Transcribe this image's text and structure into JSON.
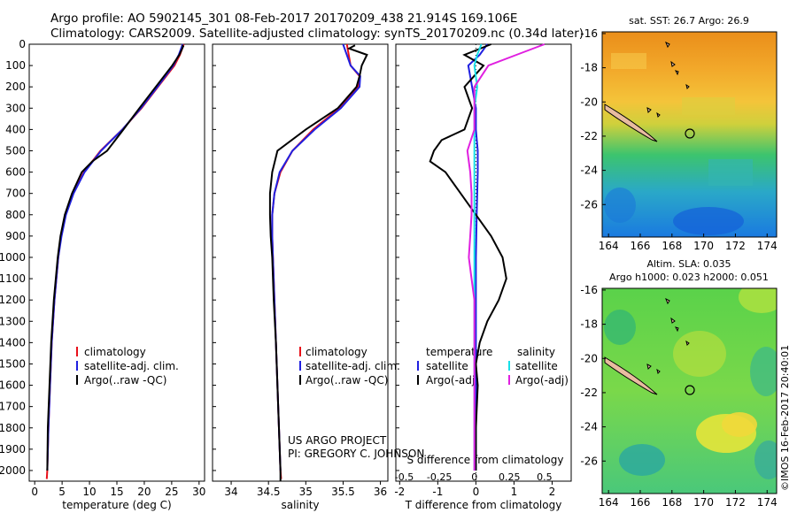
{
  "header": {
    "line1": "Argo profile: AO 5902145_301 08-Feb-2017 20170209_438 21.914S 169.106E",
    "line2": "Climatology: CARS2009. Satellite-adjusted climatology: synTS_20170209.nc (0.34d later)"
  },
  "footer": {
    "project": "US ARGO PROJECT",
    "pi": "PI: GREGORY C. JOHNSON"
  },
  "side_label": "©IMOS 16-Feb-2017 20:40:01",
  "colors": {
    "climatology": "#e8101a",
    "satellite": "#2020e0",
    "argo": "#000000",
    "sat_sal": "#18e0e8",
    "argo_sal": "#e020e0"
  },
  "map_titles": {
    "sst": "sat. SST: 26.7 Argo: 26.9",
    "sla1": "Altim. SLA: 0.035",
    "sla2": "Argo h1000: 0.023 h2000: 0.051"
  },
  "legends": {
    "temp": [
      "climatology",
      "satellite-adj. clim.",
      "Argo(..raw -QC)"
    ],
    "sal": [
      "climatology",
      "satellite-adj. clim.",
      "Argo(..raw -QC)"
    ],
    "diff": {
      "temp_head": "temperature",
      "sal_head": "salinity",
      "items": [
        "satellite",
        "Argo(-adj)",
        "satellite",
        "Argo(-adj)"
      ]
    }
  },
  "chart_data": [
    {
      "type": "line",
      "xlabel": "temperature (deg C)",
      "ylabel": "",
      "xlim": [
        -1,
        31
      ],
      "ylim": [
        2050,
        0
      ],
      "xticks": [
        "0",
        "5",
        "10",
        "15",
        "20",
        "25",
        "30"
      ],
      "yticks": [
        "0",
        "100",
        "200",
        "300",
        "400",
        "500",
        "600",
        "700",
        "800",
        "900",
        "1000",
        "1100",
        "1200",
        "1300",
        "1400",
        "1500",
        "1600",
        "1700",
        "1800",
        "1900",
        "2000"
      ],
      "series": [
        {
          "name": "climatology",
          "depth": [
            0,
            50,
            100,
            200,
            300,
            400,
            500,
            600,
            700,
            800,
            900,
            1000,
            1200,
            1400,
            1600,
            1800,
            2000,
            2040
          ],
          "values": [
            27.2,
            26.5,
            25.5,
            22.5,
            19.5,
            16.0,
            12.0,
            9.0,
            7.0,
            5.6,
            4.8,
            4.3,
            3.6,
            3.1,
            2.8,
            2.5,
            2.3,
            2.2
          ]
        },
        {
          "name": "satellite-adj. clim.",
          "depth": [
            0,
            50,
            100,
            200,
            300,
            400,
            500,
            600,
            700,
            800,
            900,
            1000,
            1200,
            1400,
            1600,
            1800,
            2000
          ],
          "values": [
            27.0,
            26.3,
            25.3,
            22.4,
            19.4,
            16.0,
            12.1,
            9.1,
            7.1,
            5.7,
            4.9,
            4.3,
            3.6,
            3.1,
            2.8,
            2.5,
            2.3
          ]
        },
        {
          "name": "Argo(..raw -QC)",
          "depth": [
            5,
            10,
            50,
            100,
            200,
            300,
            400,
            500,
            550,
            600,
            700,
            800,
            900,
            1000,
            1200,
            1400,
            1600,
            1800,
            2000
          ],
          "values": [
            26.9,
            27.1,
            26.4,
            25.1,
            22.1,
            19.1,
            16.2,
            13.2,
            10.5,
            8.6,
            6.8,
            5.5,
            4.7,
            4.2,
            3.5,
            3.0,
            2.7,
            2.4,
            2.3
          ]
        }
      ]
    },
    {
      "type": "line",
      "xlabel": "salinity",
      "ylabel": "",
      "xlim": [
        33.75,
        36.1
      ],
      "ylim": [
        2050,
        0
      ],
      "xticks": [
        "34",
        "34.5",
        "35",
        "35.5",
        "36"
      ],
      "series": [
        {
          "name": "climatology",
          "depth": [
            0,
            100,
            150,
            200,
            300,
            400,
            500,
            600,
            700,
            800,
            900,
            1000,
            1200,
            1400,
            1600,
            1800,
            2000,
            2040
          ],
          "values": [
            35.55,
            35.6,
            35.72,
            35.7,
            35.45,
            35.1,
            34.82,
            34.66,
            34.58,
            34.55,
            34.55,
            34.56,
            34.58,
            34.6,
            34.62,
            34.64,
            34.66,
            34.67
          ]
        },
        {
          "name": "satellite-adj. clim.",
          "depth": [
            0,
            100,
            150,
            200,
            300,
            400,
            500,
            600,
            700,
            800,
            900,
            1000,
            1200,
            1400,
            1600,
            1800,
            2000
          ],
          "values": [
            35.5,
            35.6,
            35.73,
            35.72,
            35.47,
            35.12,
            34.82,
            34.65,
            34.58,
            34.55,
            34.55,
            34.56,
            34.58,
            34.6,
            34.62,
            34.64,
            34.66
          ]
        },
        {
          "name": "Argo(..raw -QC)",
          "depth": [
            5,
            20,
            50,
            100,
            150,
            200,
            300,
            400,
            500,
            600,
            700,
            800,
            900,
            1000,
            1200,
            1400,
            1600,
            1800,
            2000,
            2050
          ],
          "values": [
            35.66,
            35.58,
            35.82,
            35.75,
            35.72,
            35.68,
            35.43,
            35.0,
            34.62,
            34.55,
            34.52,
            34.52,
            34.53,
            34.55,
            34.57,
            34.6,
            34.62,
            34.64,
            34.66,
            34.66
          ]
        }
      ]
    },
    {
      "type": "line",
      "xlabel": "T difference from climatology",
      "x2label": "S difference from climatology",
      "xlim": [
        -2.1,
        2.5
      ],
      "ylim": [
        2050,
        0
      ],
      "xticks": [
        "-2",
        "-1",
        "0",
        "1",
        "2"
      ],
      "x2ticks": [
        "-0.5",
        "-0.25",
        "0",
        "0.25",
        "0.5"
      ],
      "series": [
        {
          "name": "temperature satellite",
          "depth": [
            0,
            50,
            100,
            200,
            300,
            400,
            500,
            600,
            800,
            1000,
            1500,
            2000
          ],
          "values": [
            0.3,
            0.1,
            -0.2,
            -0.1,
            0.0,
            0.0,
            0.05,
            0.05,
            0.02,
            0.0,
            0.0,
            0.0
          ]
        },
        {
          "name": "temperature Argo(-adj)",
          "depth": [
            0,
            50,
            100,
            200,
            300,
            400,
            450,
            500,
            550,
            600,
            700,
            800,
            900,
            1000,
            1100,
            1200,
            1300,
            1400,
            1500,
            1600,
            1800,
            2000
          ],
          "values": [
            0.4,
            -0.3,
            0.2,
            -0.3,
            -0.1,
            -0.3,
            -0.9,
            -1.1,
            -1.2,
            -0.8,
            -0.4,
            0.0,
            0.4,
            0.7,
            0.8,
            0.6,
            0.3,
            0.1,
            0.0,
            0.05,
            0.0,
            0.0
          ]
        },
        {
          "name": "salinity satellite",
          "depth": [
            0,
            50,
            100,
            200,
            300,
            400,
            500,
            800,
            1000,
            1500,
            2000
          ],
          "values": [
            0.05,
            0.02,
            0.0,
            0.02,
            0.0,
            0.0,
            0.0,
            0.0,
            0.0,
            0.0,
            0.0
          ]
        },
        {
          "name": "salinity Argo(-adj)",
          "depth": [
            0,
            50,
            100,
            200,
            300,
            400,
            500,
            600,
            700,
            800,
            900,
            1000,
            1100,
            1200,
            1300,
            1500,
            1700,
            2000
          ],
          "values": [
            0.5,
            0.3,
            0.1,
            0.0,
            0.0,
            0.0,
            -0.05,
            -0.03,
            -0.02,
            -0.02,
            -0.03,
            -0.04,
            -0.02,
            0.0,
            0.0,
            0.0,
            0.0,
            0.0
          ]
        }
      ]
    },
    {
      "type": "heatmap",
      "title": "sat. SST: 26.7 Argo: 26.9",
      "xlim": [
        163.6,
        174.6
      ],
      "ylim": [
        -27.9,
        -15.9
      ],
      "xticks": [
        "164",
        "166",
        "168",
        "170",
        "172",
        "174"
      ],
      "yticks": [
        "-16",
        "-18",
        "-20",
        "-22",
        "-24",
        "-26"
      ],
      "float_position": [
        169.1,
        -21.9
      ]
    },
    {
      "type": "heatmap",
      "title": "Altim. SLA: 0.035",
      "xlim": [
        163.6,
        174.6
      ],
      "ylim": [
        -27.9,
        -15.9
      ],
      "xticks": [
        "164",
        "166",
        "168",
        "170",
        "172",
        "174"
      ],
      "yticks": [
        "-16",
        "-18",
        "-20",
        "-22",
        "-24",
        "-26"
      ],
      "float_position": [
        169.1,
        -21.9
      ]
    }
  ]
}
